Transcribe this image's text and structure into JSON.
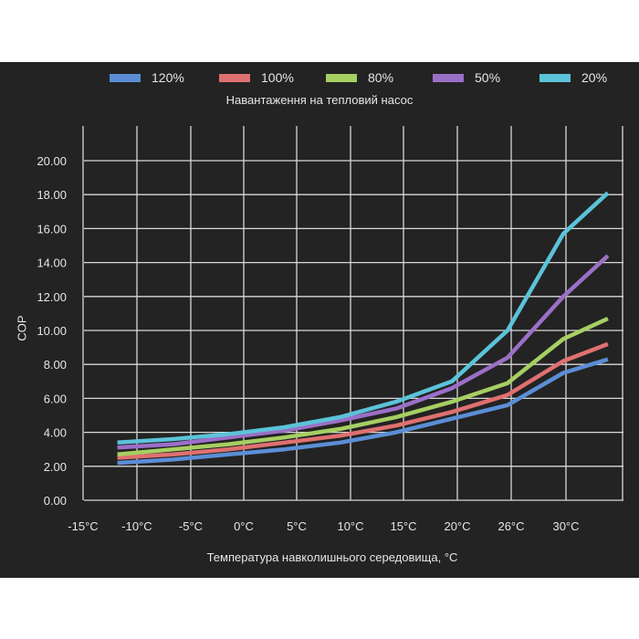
{
  "legend_title": "Навантаження на тепловий насос",
  "chart_data": {
    "type": "line",
    "xlabel": "Температура навколишнього середовища, °C",
    "ylabel": "COP",
    "x_tick_labels": [
      "-15°C",
      "-10°C",
      "-5°C",
      "0°C",
      "5°C",
      "10°C",
      "15°C",
      "20°C",
      "26°C",
      "30°C"
    ],
    "y_tick_labels": [
      "0.00",
      "2.00",
      "4.00",
      "6.00",
      "8.00",
      "10.00",
      "12.00",
      "14.00",
      "16.00",
      "18.00",
      "20.00"
    ],
    "ylim": [
      0,
      20
    ],
    "grid": true,
    "legend_position": "top",
    "x": [
      -12,
      -7,
      -2,
      3,
      8,
      13,
      18,
      23,
      28,
      32
    ],
    "series": [
      {
        "name": "120%",
        "color": "#5b8ed6",
        "values": [
          2.2,
          2.4,
          2.7,
          3.0,
          3.4,
          4.0,
          4.8,
          5.6,
          7.5,
          8.3
        ]
      },
      {
        "name": "100%",
        "color": "#e07070",
        "values": [
          2.5,
          2.7,
          3.0,
          3.4,
          3.8,
          4.4,
          5.2,
          6.2,
          8.2,
          9.2
        ]
      },
      {
        "name": "80%",
        "color": "#a6cf62",
        "values": [
          2.7,
          3.0,
          3.3,
          3.7,
          4.2,
          4.9,
          5.8,
          6.9,
          9.5,
          10.7
        ]
      },
      {
        "name": "50%",
        "color": "#9b6fc7",
        "values": [
          3.1,
          3.3,
          3.7,
          4.1,
          4.7,
          5.4,
          6.6,
          8.4,
          12.0,
          14.4
        ]
      },
      {
        "name": "20%",
        "color": "#5bc3d9",
        "values": [
          3.4,
          3.6,
          3.9,
          4.3,
          4.9,
          5.8,
          7.0,
          10.0,
          15.7,
          18.1
        ]
      }
    ]
  }
}
